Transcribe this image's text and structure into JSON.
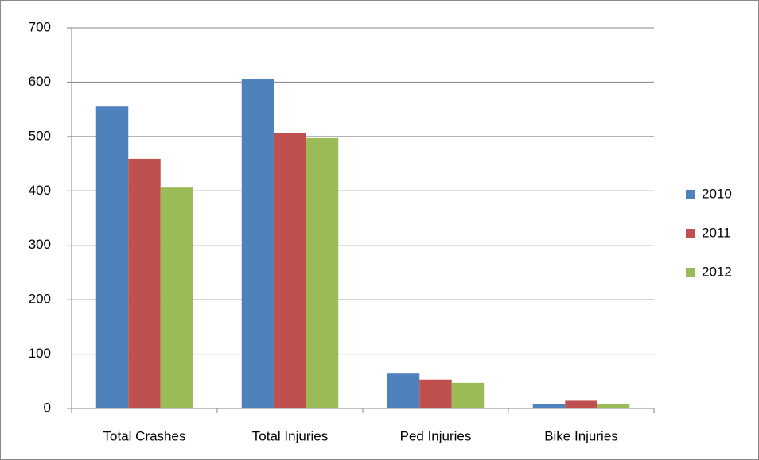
{
  "chart_data": {
    "type": "bar",
    "categories": [
      "Total Crashes",
      "Total Injuries",
      "Ped Injuries",
      "Bike Injuries"
    ],
    "series": [
      {
        "name": "2010",
        "color": "#4f81bd",
        "values": [
          555,
          605,
          64,
          8
        ]
      },
      {
        "name": "2011",
        "color": "#c0504d",
        "values": [
          459,
          506,
          53,
          14
        ]
      },
      {
        "name": "2012",
        "color": "#9bbb59",
        "values": [
          406,
          497,
          47,
          8
        ]
      }
    ],
    "ylim": [
      0,
      700
    ],
    "yticks": [
      0,
      100,
      200,
      300,
      400,
      500,
      600,
      700
    ],
    "grid": true,
    "legend": "right"
  }
}
